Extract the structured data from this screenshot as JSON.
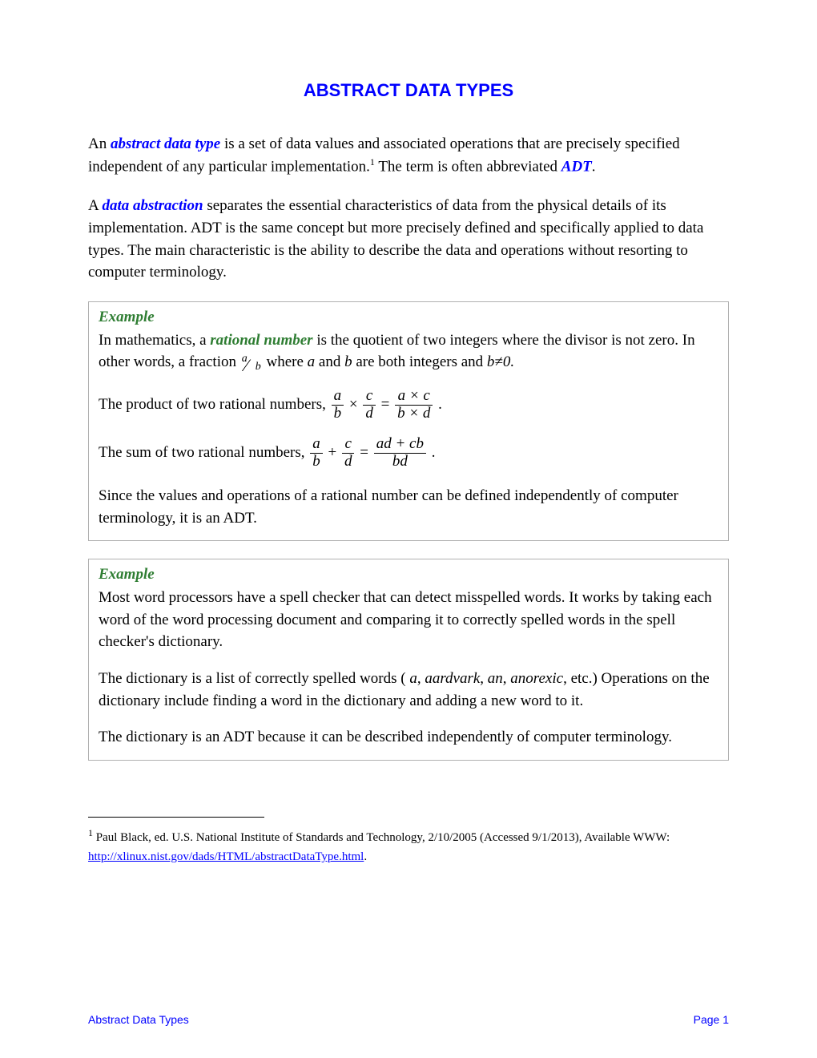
{
  "title": "ABSTRACT DATA TYPES",
  "intro": {
    "prefix": "An ",
    "term": "abstract data type",
    "mid": " is a set of data values and associated operations that are precisely specified independent of any particular implementation.",
    "footref": "1",
    "after": " The term is often abbreviated ",
    "abbr": "ADT",
    "end": "."
  },
  "para2": {
    "prefix": "A ",
    "term": "data abstraction",
    "rest": " separates the essential characteristics of data from the physical details of its implementation. ADT is the same concept but more precisely defined and specifically applied to data types. The main characteristic is the ability to describe the data and operations without resorting to computer terminology."
  },
  "example1": {
    "heading": "Example",
    "line1a": "In mathematics, a ",
    "term": "rational number",
    "line1b": " is the quotient of two integers where the divisor is not zero. In other words, a fraction ",
    "frac_a": "a",
    "frac_b": "b",
    "line1c": " where ",
    "var_a": "a",
    "and": " and ",
    "var_b": "b",
    "line1d": " are both integers and ",
    "cond": "b≠0.",
    "prod_label": "The product of two rational numbers, ",
    "sum_label": "The sum of two rational numbers, ",
    "eq1_lhs1_num": "a",
    "eq1_lhs1_den": "b",
    "eq1_op": "×",
    "eq1_lhs2_num": "c",
    "eq1_lhs2_den": "d",
    "eq1_eq": "=",
    "eq1_rhs_num": "a × c",
    "eq1_rhs_den": "b × d",
    "eq1_end": ".",
    "eq2_lhs1_num": "a",
    "eq2_lhs1_den": "b",
    "eq2_op": "+",
    "eq2_lhs2_num": "c",
    "eq2_lhs2_den": "d",
    "eq2_eq": "=",
    "eq2_rhs_num": "ad + cb",
    "eq2_rhs_den": "bd",
    "eq2_end": ".",
    "conclusion": "Since the values and operations of a rational number can be defined independently of computer terminology, it is an ADT."
  },
  "example2": {
    "heading": "Example",
    "p1": "Most word processors have a spell checker that can detect misspelled words. It works by taking each word of the word processing document and comparing it to correctly spelled words in the spell checker's dictionary.",
    "p2a": "The dictionary is a list of correctly spelled words ( ",
    "w1": "a",
    "c1": ", ",
    "w2": "aardvark",
    "c2": ", ",
    "w3": "an",
    "c3": ", ",
    "w4": "anorexic",
    "p2b": ", etc.) Operations on the dictionary include finding a word in the dictionary and adding a new word to it.",
    "p3": "The dictionary is an ADT because it can be described independently of computer terminology."
  },
  "footnote": {
    "ref": "1",
    "text_before": " Paul Black, ed. U.S. National Institute of Standards and Technology, 2/10/2005 (Accessed 9/1/2013), Available WWW: ",
    "link_text": "http://xlinux.nist.gov/dads/HTML/abstractDataType.html",
    "text_after": "."
  },
  "footer": {
    "left": "Abstract Data Types",
    "right": "Page 1"
  },
  "colors": {
    "title": "#0000ff",
    "term": "#0000ff",
    "example_heading": "#2e7d32",
    "link": "#0000ff",
    "footer": "#0000ff",
    "body_text": "#000000",
    "box_border": "#b0b0b0",
    "background": "#ffffff"
  },
  "fonts": {
    "title_family": "Verdana",
    "title_size_pt": 16,
    "body_family": "Times New Roman",
    "body_size_pt": 14,
    "footnote_size_pt": 11,
    "footer_family": "Verdana",
    "footer_size_pt": 10
  }
}
